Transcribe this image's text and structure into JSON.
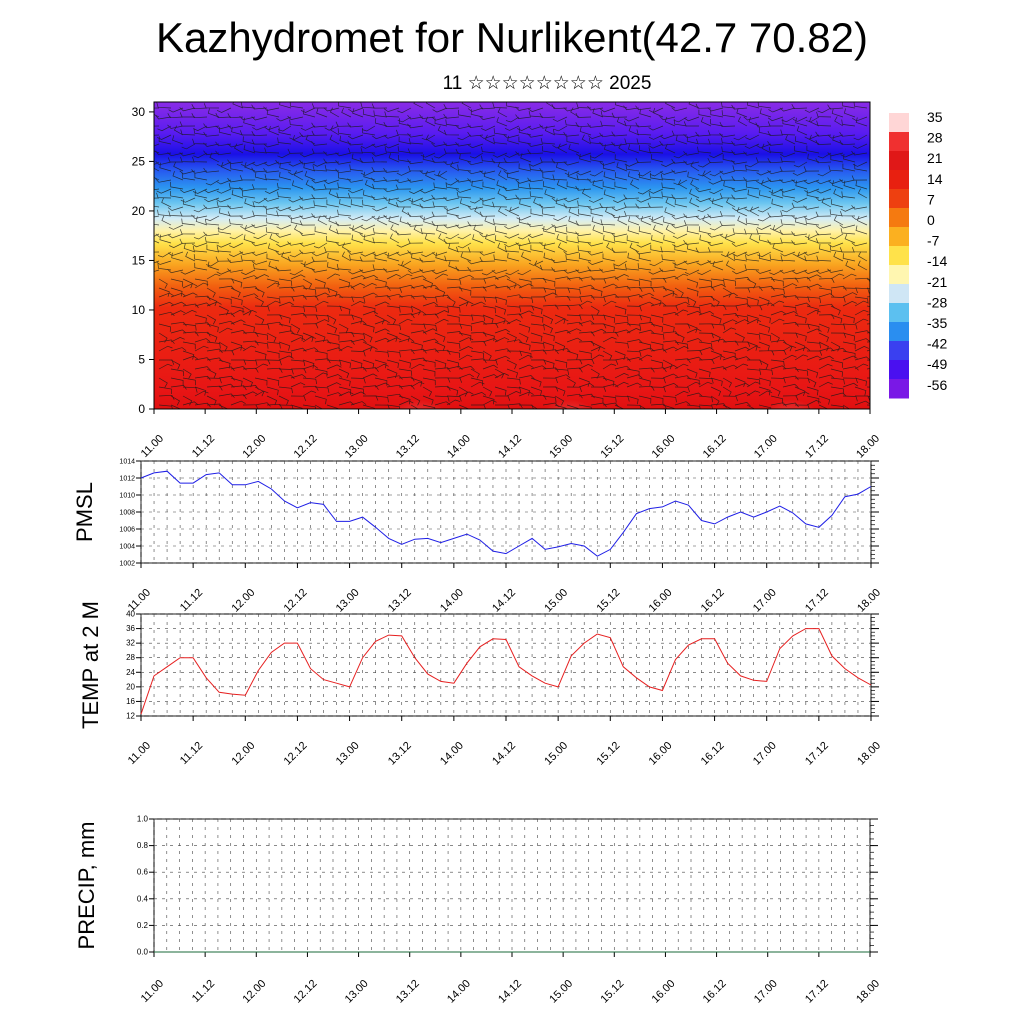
{
  "title": "Kazhydromet for Nurlikent(42.7 70.82)",
  "subtitle": "11 ☆☆☆☆☆☆☆☆ 2025",
  "colors": {
    "pmsl_line": "#1f1fe6",
    "temp_line": "#e61f1f",
    "precip_line": "#1a6a3a",
    "grid": "#444444"
  },
  "chart_data": [
    {
      "type": "heatmap",
      "description_of_field": "vertical cross-section with wind barbs",
      "x_tick_labels": [
        "11.00",
        "11.12",
        "12.00",
        "12.12",
        "13.00",
        "13.12",
        "14.00",
        "14.12",
        "15.00",
        "15.12",
        "16.00",
        "16.12",
        "17.00",
        "17.12",
        "18.00"
      ],
      "y_ticks": [
        0,
        5,
        10,
        15,
        20,
        25,
        30
      ],
      "ylim": [
        0,
        31
      ],
      "colorbar": {
        "labels": [
          "35",
          "28",
          "21",
          "14",
          "7",
          "0",
          "-7",
          "-14",
          "-21",
          "-28",
          "-35",
          "-42",
          "-49",
          "-56"
        ],
        "stops": [
          "#ffd6d6",
          "#f03030",
          "#e01818",
          "#e82010",
          "#ee4010",
          "#f57a10",
          "#fbb020",
          "#ffe24a",
          "#fff6b0",
          "#cfe6f5",
          "#5cc0f0",
          "#2a8ef0",
          "#3a40f0",
          "#4a10f0",
          "#7a18e6"
        ]
      }
    },
    {
      "type": "line",
      "ylabel": "PMSL",
      "ylim": [
        1002,
        1014
      ],
      "y_ticks": [
        "1002",
        "1004",
        "1006",
        "1008",
        "1010",
        "1012",
        "1014"
      ],
      "x_tick_labels": [
        "11.00",
        "11.12",
        "12.00",
        "12.12",
        "13.00",
        "13.12",
        "14.00",
        "14.12",
        "15.00",
        "15.12",
        "16.00",
        "16.12",
        "17.00",
        "17.12",
        "18.00"
      ],
      "series": [
        {
          "values": [
            1012.0,
            1012.6,
            1012.8,
            1011.4,
            1011.4,
            1012.4,
            1012.6,
            1011.2,
            1011.2,
            1011.6,
            1010.7,
            1009.3,
            1008.5,
            1009.1,
            1008.9,
            1006.9,
            1006.9,
            1007.4,
            1006.2,
            1004.9,
            1004.2,
            1004.8,
            1004.9,
            1004.4,
            1004.9,
            1005.4,
            1004.7,
            1003.4,
            1003.1,
            1004.0,
            1004.9,
            1003.6,
            1003.9,
            1004.3,
            1004.0,
            1002.8,
            1003.6,
            1005.6,
            1007.8,
            1008.4,
            1008.6,
            1009.3,
            1008.8,
            1007.0,
            1006.6,
            1007.4,
            1008.0,
            1007.4,
            1008.0,
            1008.7,
            1007.9,
            1006.6,
            1006.2,
            1007.6,
            1009.8,
            1010.1,
            1011.0
          ]
        }
      ]
    },
    {
      "type": "line",
      "ylabel": "TEMP at 2 M",
      "ylim": [
        12,
        40
      ],
      "y_ticks": [
        "12",
        "16",
        "20",
        "24",
        "28",
        "32",
        "36",
        "40"
      ],
      "x_tick_labels": [
        "11.00",
        "11.12",
        "12.00",
        "12.12",
        "13.00",
        "13.12",
        "14.00",
        "14.12",
        "15.00",
        "15.12",
        "16.00",
        "16.12",
        "17.00",
        "17.12",
        "18.00"
      ],
      "series": [
        {
          "values": [
            12.5,
            23.0,
            25.5,
            28.0,
            28.0,
            22.5,
            18.5,
            18.0,
            17.7,
            24.5,
            29.5,
            32.0,
            32.0,
            25.0,
            22.0,
            21.0,
            20.0,
            28.0,
            32.5,
            34.2,
            34.0,
            28.0,
            23.5,
            21.5,
            21.0,
            26.5,
            31.0,
            33.2,
            33.0,
            25.5,
            23.0,
            21.0,
            20.0,
            28.5,
            32.0,
            34.5,
            33.5,
            25.5,
            22.5,
            20.0,
            19.0,
            27.5,
            31.5,
            33.2,
            33.2,
            26.5,
            23.0,
            21.8,
            21.5,
            30.5,
            34.0,
            36.0,
            36.0,
            28.5,
            25.0,
            22.5,
            20.5
          ]
        }
      ]
    },
    {
      "type": "line",
      "ylabel": "PRECIP, mm",
      "ylim": [
        0,
        1
      ],
      "y_ticks": [
        "0.0",
        "0.2",
        "0.4",
        "0.6",
        "0.8",
        "1.0"
      ],
      "x_tick_labels": [
        "11.00",
        "11.12",
        "12.00",
        "12.12",
        "13.00",
        "13.12",
        "14.00",
        "14.12",
        "15.00",
        "15.12",
        "16.00",
        "16.12",
        "17.00",
        "17.12",
        "18.00"
      ],
      "series": [
        {
          "values": [
            0,
            0,
            0,
            0,
            0,
            0,
            0,
            0,
            0,
            0,
            0,
            0,
            0,
            0,
            0,
            0,
            0,
            0,
            0,
            0,
            0,
            0,
            0,
            0,
            0,
            0,
            0,
            0,
            0,
            0,
            0,
            0,
            0,
            0,
            0,
            0,
            0,
            0,
            0,
            0,
            0,
            0,
            0,
            0,
            0,
            0,
            0,
            0,
            0,
            0,
            0,
            0,
            0,
            0,
            0,
            0,
            0
          ]
        }
      ]
    }
  ]
}
